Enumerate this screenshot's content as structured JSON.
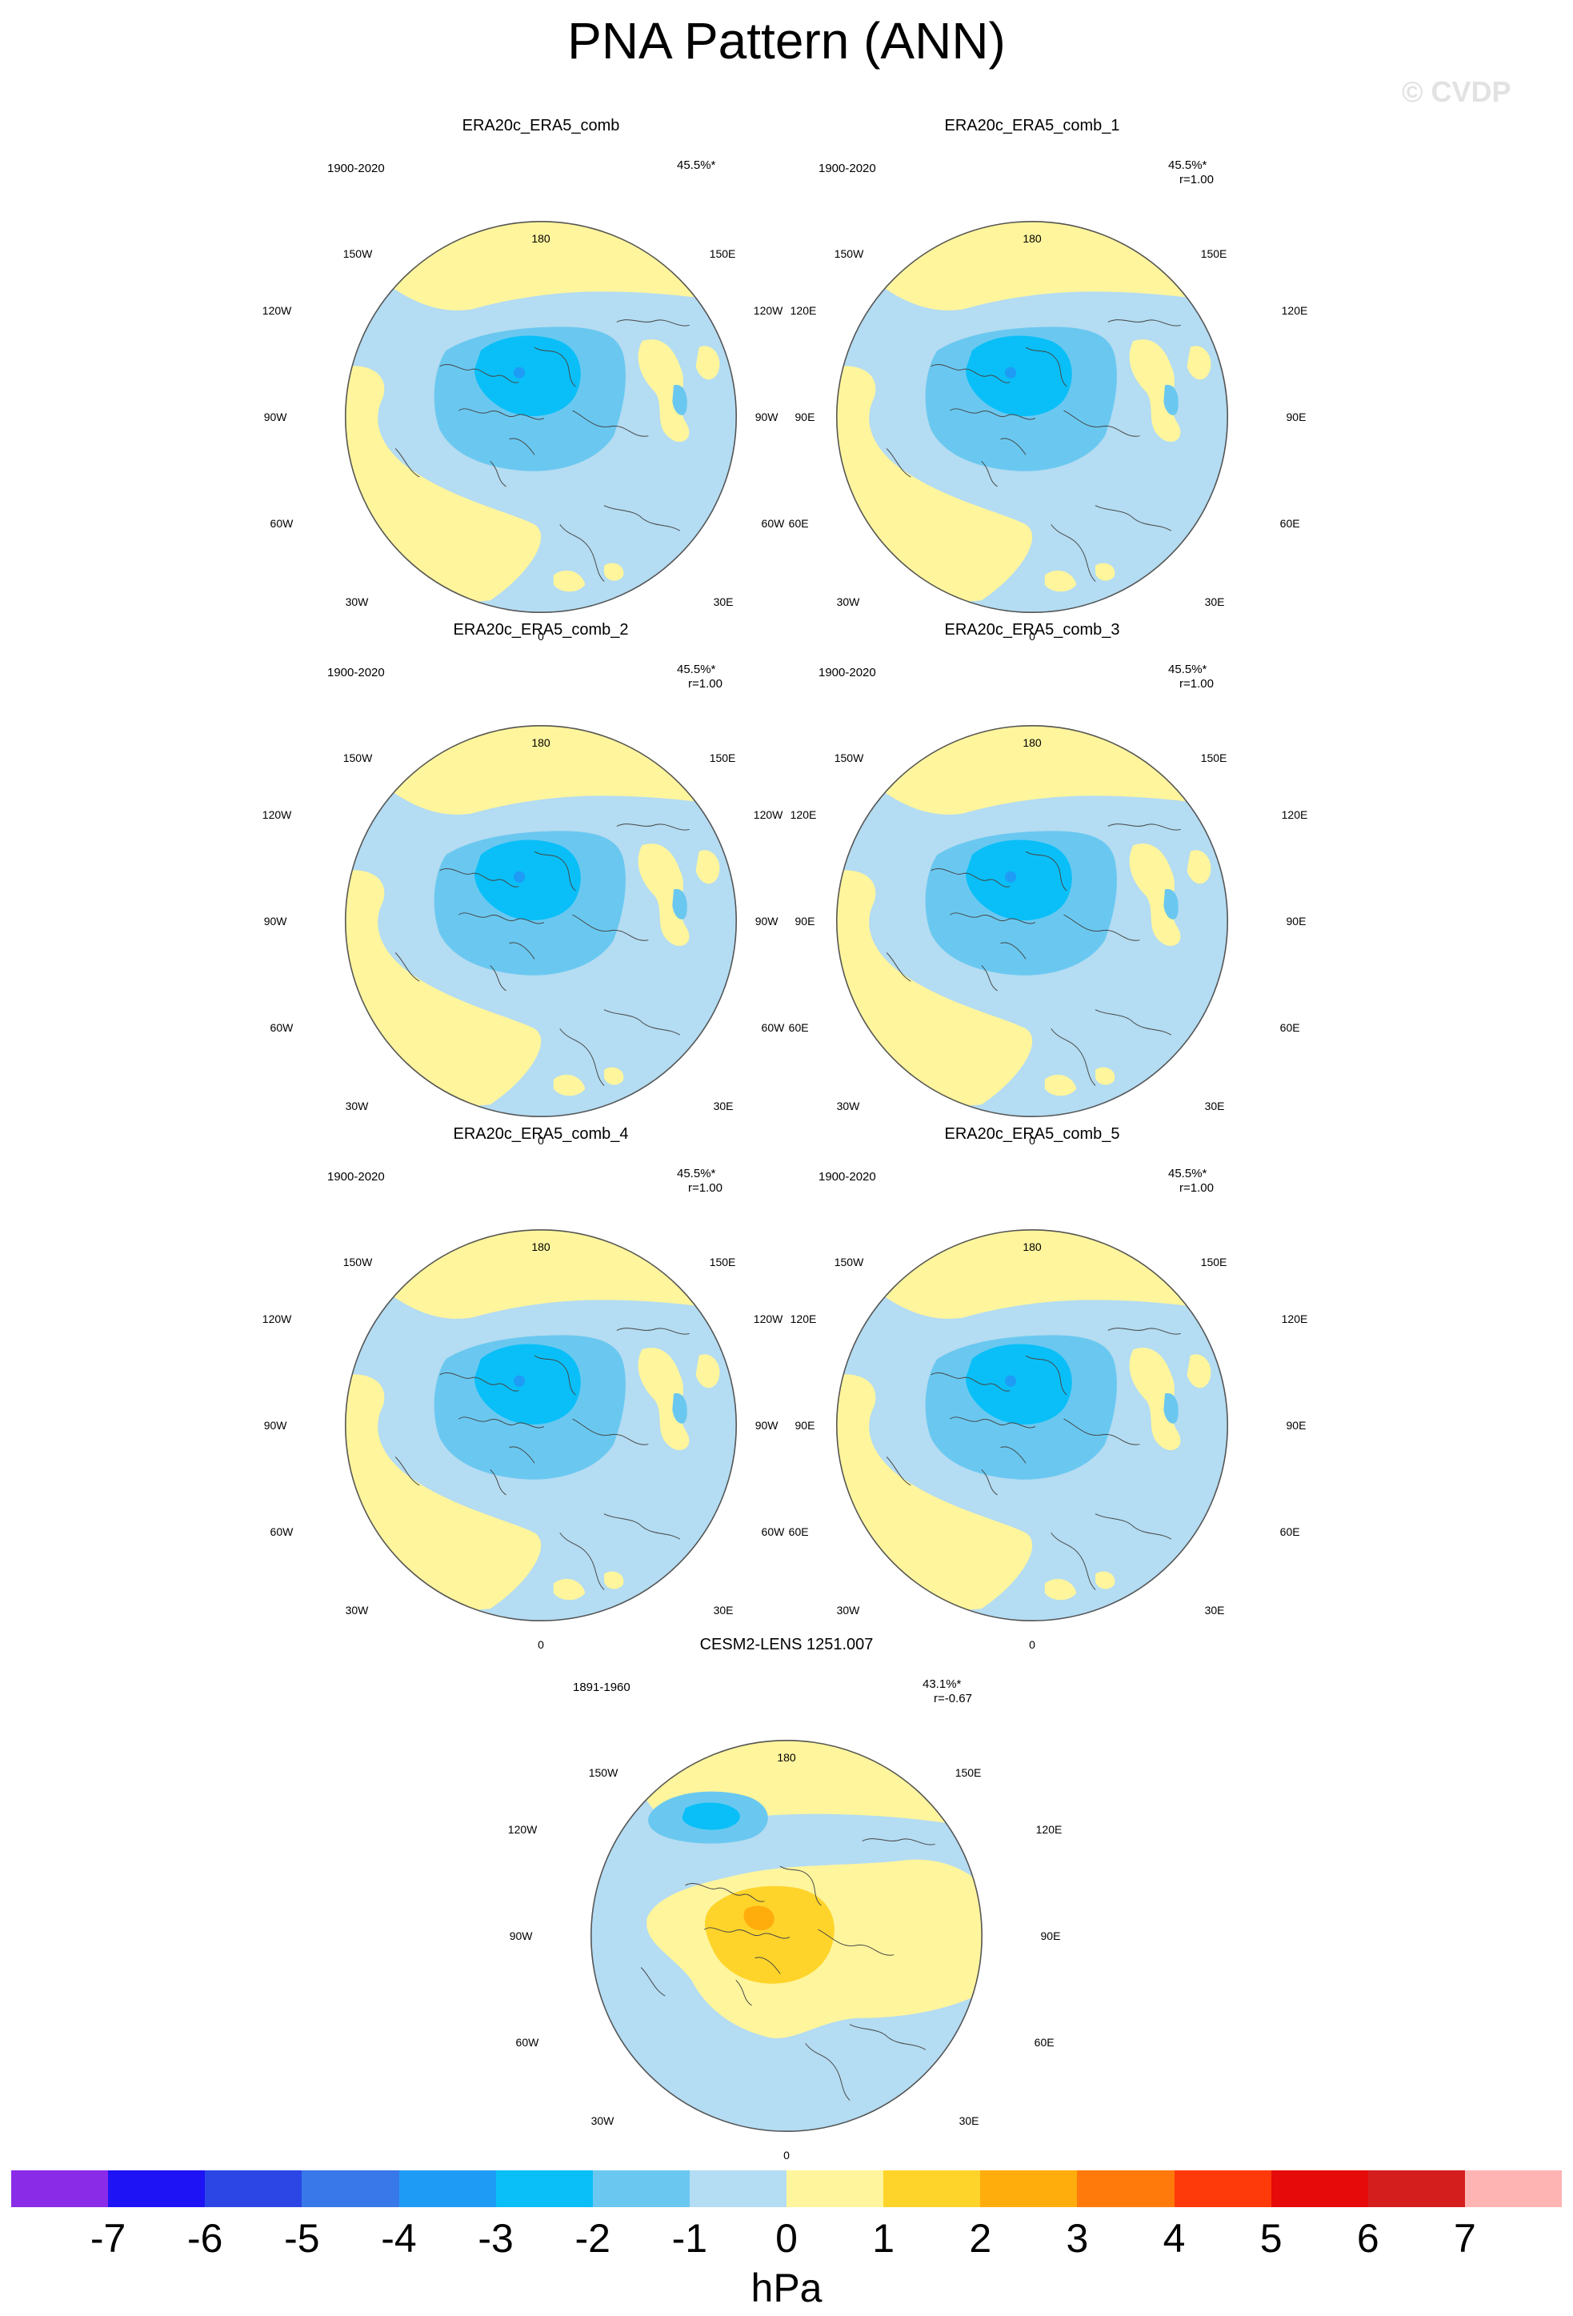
{
  "title": "PNA Pattern (ANN)",
  "watermark": "© CVDP",
  "units": "hPa",
  "colorbar": {
    "colors": [
      "#8a2be8",
      "#1e13f5",
      "#2c46e6",
      "#3878e8",
      "#1e9cf5",
      "#0abff7",
      "#6ac8f0",
      "#b4dcf2",
      "#fff59d",
      "#ffd42a",
      "#ffad0d",
      "#ff7a0a",
      "#ff3a0a",
      "#e60a0a",
      "#d41e1e",
      "#ffb4b4"
    ],
    "ticks": [
      "-7",
      "-6",
      "-5",
      "-4",
      "-3",
      "-2",
      "-1",
      "0",
      "1",
      "2",
      "3",
      "4",
      "5",
      "6",
      "7"
    ]
  },
  "lon_labels": {
    "top": "180",
    "tr": "150E",
    "tr2": "120E",
    "right": "90E",
    "br2": "60E",
    "br": "30E",
    "bottom": "0",
    "bl": "30W",
    "bl2": "60W",
    "left": "90W",
    "tl2": "120W",
    "tl": "150W"
  },
  "panels": [
    {
      "title": "ERA20c_ERA5_comb",
      "years": "1900-2020",
      "pct": "45.5%*",
      "r": "",
      "pattern": "obs"
    },
    {
      "title": "ERA20c_ERA5_comb_1",
      "years": "1900-2020",
      "pct": "45.5%*",
      "r": "r=1.00",
      "pattern": "obs"
    },
    {
      "title": "ERA20c_ERA5_comb_2",
      "years": "1900-2020",
      "pct": "45.5%*",
      "r": "r=1.00",
      "pattern": "obs"
    },
    {
      "title": "ERA20c_ERA5_comb_3",
      "years": "1900-2020",
      "pct": "45.5%*",
      "r": "r=1.00",
      "pattern": "obs"
    },
    {
      "title": "ERA20c_ERA5_comb_4",
      "years": "1900-2020",
      "pct": "45.5%*",
      "r": "r=1.00",
      "pattern": "obs"
    },
    {
      "title": "ERA20c_ERA5_comb_5",
      "years": "1900-2020",
      "pct": "45.5%*",
      "r": "r=1.00",
      "pattern": "obs"
    },
    {
      "title": "CESM2-LENS 1251.007",
      "years": "1891-1960",
      "pct": "43.1%*",
      "r": "r=-0.67",
      "pattern": "model"
    }
  ]
}
